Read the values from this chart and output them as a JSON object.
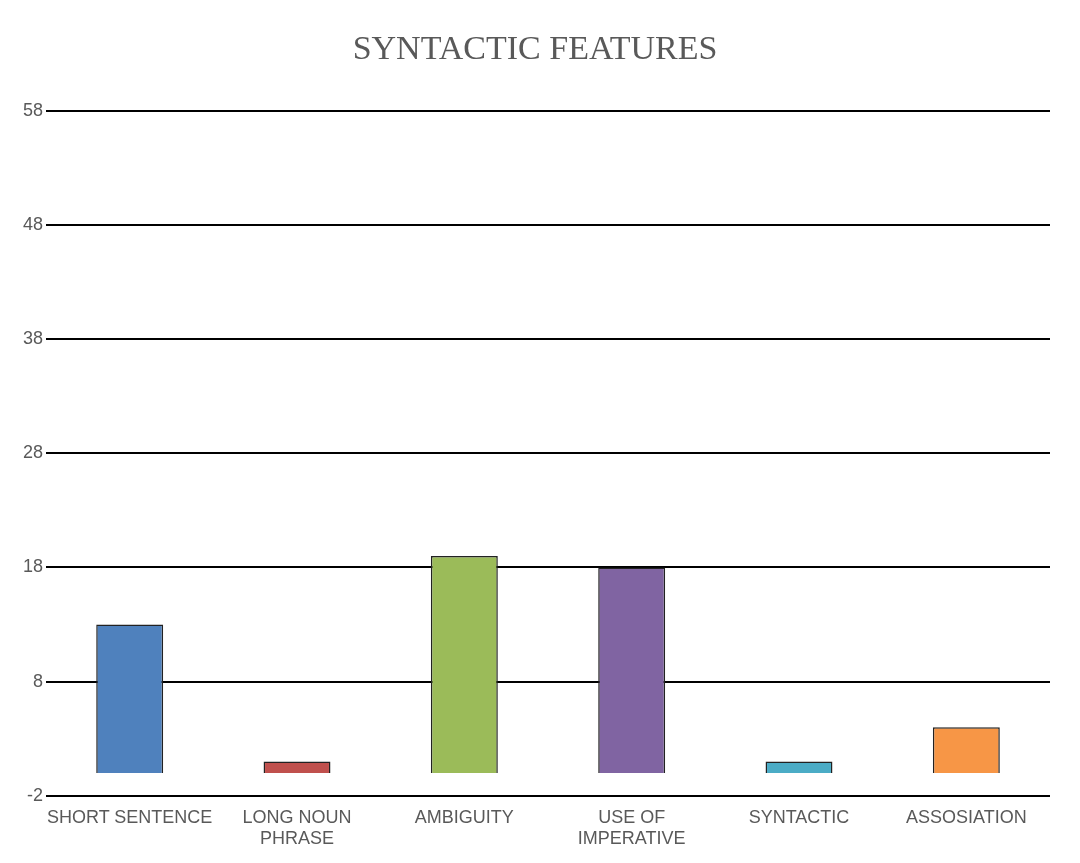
{
  "chart_data": {
    "type": "bar",
    "title": "SYNTACTIC FEATURES",
    "categories": [
      "SHORT SENTENCE",
      "LONG NOUN PHRASE",
      "AMBIGUITY",
      "USE OF IMPERATIVE",
      "SYNTACTIC",
      "ASSOSIATION"
    ],
    "values": [
      13,
      1,
      19,
      18,
      1,
      4
    ],
    "colors": [
      "#4f81bd",
      "#c0504d",
      "#9bbb59",
      "#8064a2",
      "#4bacc6",
      "#f79646"
    ],
    "ylim": [
      -2,
      58
    ],
    "yticks": [
      -2,
      8,
      18,
      28,
      38,
      48,
      58
    ],
    "grid": "y"
  }
}
